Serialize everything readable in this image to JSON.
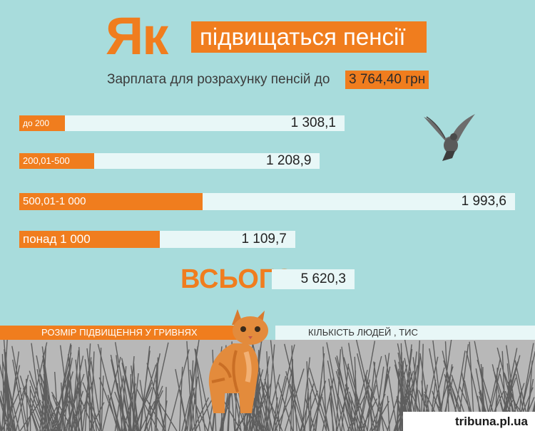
{
  "header": {
    "title_big": "Як",
    "title_rest": "підвищаться пенсії",
    "subtitle": "Зарплата для розрахунку пенсій до",
    "subtitle_value": "3 764,40 грн"
  },
  "chart_data": {
    "type": "bar",
    "categories": [
      "до 200",
      "200,01-500",
      "500,01-1 000",
      "понад 1 000"
    ],
    "values": [
      1308.1,
      1208.9,
      1993.6,
      1109.7
    ],
    "value_labels": [
      "1 308,1",
      "1 208,9",
      "1 993,6",
      "1 109,7"
    ],
    "orange_fraction": [
      0.14,
      0.25,
      0.37,
      0.51
    ],
    "total_label": "ВСЬОГО",
    "total_value": "5 620,3",
    "legend": {
      "left": "РОЗМІР ПІДВИЩЕННЯ У ГРИВНЯХ",
      "right": "КІЛЬКІСТЬ ЛЮДЕЙ , ТИС"
    },
    "colors": {
      "accent": "#f07d1e",
      "bar_bg": "#e8f7f7",
      "background": "#a8dcdc"
    }
  },
  "footer": {
    "brand": "tribuna.pl.ua"
  }
}
